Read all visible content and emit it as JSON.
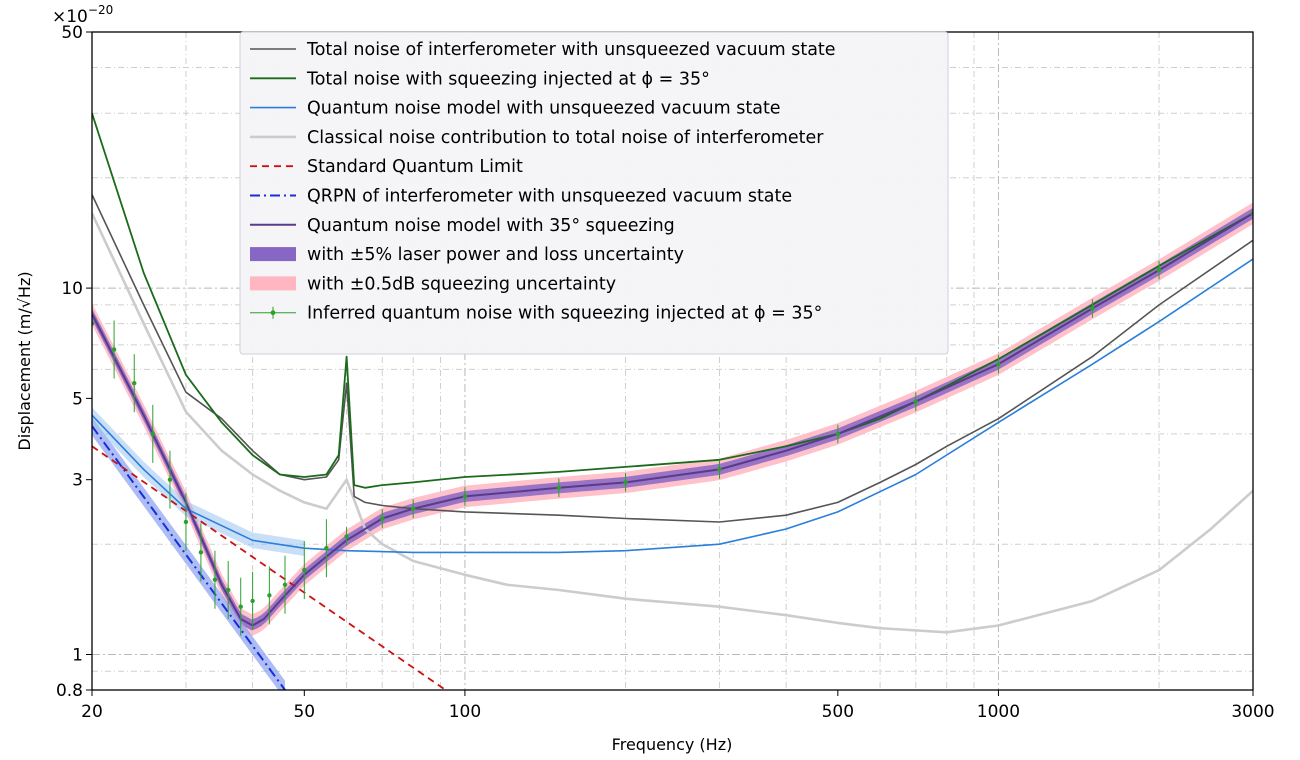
{
  "chart_data": {
    "type": "line",
    "title": "",
    "xlabel": "Frequency (Hz)",
    "ylabel": "Displacement (m/√Hz)",
    "y_multiplier": "×10",
    "y_exponent": "−20",
    "x_scale": "log",
    "y_scale": "log",
    "xlim": [
      20,
      3000
    ],
    "ylim": [
      0.8,
      50
    ],
    "x_ticks": [
      {
        "value": 20,
        "label": "20"
      },
      {
        "value": 50,
        "label": "50"
      },
      {
        "value": 100,
        "label": "100"
      },
      {
        "value": 500,
        "label": "500"
      },
      {
        "value": 1000,
        "label": "1000"
      },
      {
        "value": 3000,
        "label": "3000"
      }
    ],
    "y_ticks": [
      {
        "value": 0.8,
        "label": "0.8"
      },
      {
        "value": 1,
        "label": "1"
      },
      {
        "value": 3,
        "label": "3"
      },
      {
        "value": 5,
        "label": "5"
      },
      {
        "value": 10,
        "label": "10"
      },
      {
        "value": 50,
        "label": "50"
      }
    ],
    "grid": true,
    "legend_position": "top-center",
    "series": [
      {
        "key": "total_unsq",
        "name": "Total noise of interferometer with unsqueezed vacuum state",
        "color": "#555555",
        "style": "solid",
        "x": [
          20,
          25,
          30,
          35,
          40,
          45,
          50,
          55,
          58,
          60,
          62,
          65,
          70,
          80,
          100,
          150,
          200,
          300,
          400,
          500,
          600,
          700,
          800,
          1000,
          1500,
          2000,
          3000
        ],
        "y": [
          18,
          9,
          5.2,
          4.4,
          3.6,
          3.1,
          3.0,
          3.05,
          3.4,
          5.5,
          2.7,
          2.6,
          2.55,
          2.5,
          2.45,
          2.4,
          2.35,
          2.3,
          2.4,
          2.6,
          2.95,
          3.3,
          3.7,
          4.4,
          6.5,
          9.0,
          13.5
        ]
      },
      {
        "key": "total_sq",
        "name": "Total noise with squeezing injected at ϕ = 35°",
        "color": "#1a6b1a",
        "style": "solid",
        "x": [
          20,
          25,
          30,
          35,
          40,
          45,
          50,
          55,
          58,
          60,
          62,
          65,
          70,
          80,
          100,
          150,
          200,
          300,
          400,
          500,
          600,
          700,
          800,
          1000,
          1500,
          2000,
          3000
        ],
        "y": [
          30,
          11,
          5.8,
          4.3,
          3.5,
          3.1,
          3.05,
          3.1,
          3.5,
          6.5,
          2.9,
          2.85,
          2.9,
          2.95,
          3.05,
          3.15,
          3.25,
          3.4,
          3.7,
          4.0,
          4.4,
          4.9,
          5.4,
          6.4,
          9.0,
          11.5,
          16.0
        ]
      },
      {
        "key": "qn_unsq",
        "name": "Quantum noise model with unsqueezed vacuum state",
        "color": "#2a7fdb",
        "style": "solid",
        "x": [
          20,
          25,
          30,
          40,
          50,
          60,
          80,
          100,
          150,
          200,
          300,
          400,
          500,
          700,
          1000,
          1500,
          2000,
          3000
        ],
        "y": [
          4.5,
          3.2,
          2.5,
          2.05,
          1.95,
          1.92,
          1.9,
          1.9,
          1.9,
          1.92,
          2.0,
          2.2,
          2.45,
          3.1,
          4.3,
          6.2,
          8.1,
          12.0
        ]
      },
      {
        "key": "classical",
        "name": "Classical noise contribution to total noise of interferometer",
        "color": "#cccccc",
        "style": "solid",
        "x": [
          20,
          25,
          30,
          35,
          40,
          45,
          50,
          55,
          60,
          65,
          70,
          80,
          100,
          120,
          150,
          200,
          300,
          400,
          500,
          600,
          800,
          1000,
          1500,
          2000,
          2500,
          3000
        ],
        "y": [
          16,
          8,
          4.6,
          3.6,
          3.1,
          2.8,
          2.6,
          2.5,
          3.0,
          2.2,
          2.0,
          1.8,
          1.65,
          1.55,
          1.5,
          1.42,
          1.35,
          1.28,
          1.22,
          1.18,
          1.15,
          1.2,
          1.4,
          1.7,
          2.2,
          2.8
        ]
      },
      {
        "key": "sql",
        "name": "Standard Quantum Limit",
        "color": "#cc1111",
        "style": "dashed",
        "x": [
          20,
          92
        ],
        "y": [
          3.7,
          0.8
        ]
      },
      {
        "key": "qrpn",
        "name": "QRPN of interferometer with unsqueezed vacuum state",
        "color": "#1530d6",
        "style": "dashdot",
        "x": [
          20,
          46
        ],
        "y": [
          4.2,
          0.8
        ]
      },
      {
        "key": "qn_sq",
        "name": "Quantum noise model with 35° squeezing",
        "color": "#5a3a8a",
        "style": "solid",
        "x": [
          20,
          25,
          30,
          35,
          38,
          40,
          42,
          45,
          50,
          55,
          60,
          70,
          80,
          100,
          150,
          200,
          300,
          400,
          500,
          700,
          1000,
          1500,
          2000,
          3000
        ],
        "y": [
          8.5,
          4.5,
          2.6,
          1.55,
          1.25,
          1.2,
          1.25,
          1.4,
          1.65,
          1.85,
          2.05,
          2.35,
          2.5,
          2.7,
          2.85,
          2.95,
          3.2,
          3.6,
          4.0,
          4.9,
          6.2,
          8.8,
          11.2,
          16.0
        ]
      }
    ],
    "bands": [
      {
        "key": "band_laser",
        "name": "with ±5% laser power and loss uncertainty",
        "color": "#8866c4"
      },
      {
        "key": "band_sqz",
        "name": "with ±0.5dB squeezing uncertainty",
        "color": "#ffb6c1"
      }
    ],
    "errorbar_series": {
      "key": "inferred",
      "name": "Inferred quantum noise with squeezing injected at ϕ = 35°",
      "color": "#2ca02c",
      "x": [
        20,
        22,
        24,
        26,
        28,
        30,
        32,
        34,
        36,
        38,
        40,
        43,
        46,
        50,
        55,
        60,
        70,
        80,
        100,
        150,
        200,
        300,
        500,
        700,
        1000,
        1500,
        2000,
        3000
      ],
      "y": [
        8.0,
        6.8,
        5.5,
        4.0,
        3.0,
        2.3,
        1.9,
        1.6,
        1.5,
        1.35,
        1.4,
        1.45,
        1.55,
        1.7,
        1.95,
        2.1,
        2.35,
        2.5,
        2.7,
        2.85,
        2.95,
        3.2,
        4.0,
        4.9,
        6.2,
        8.8,
        11.2,
        16.0
      ]
    }
  }
}
